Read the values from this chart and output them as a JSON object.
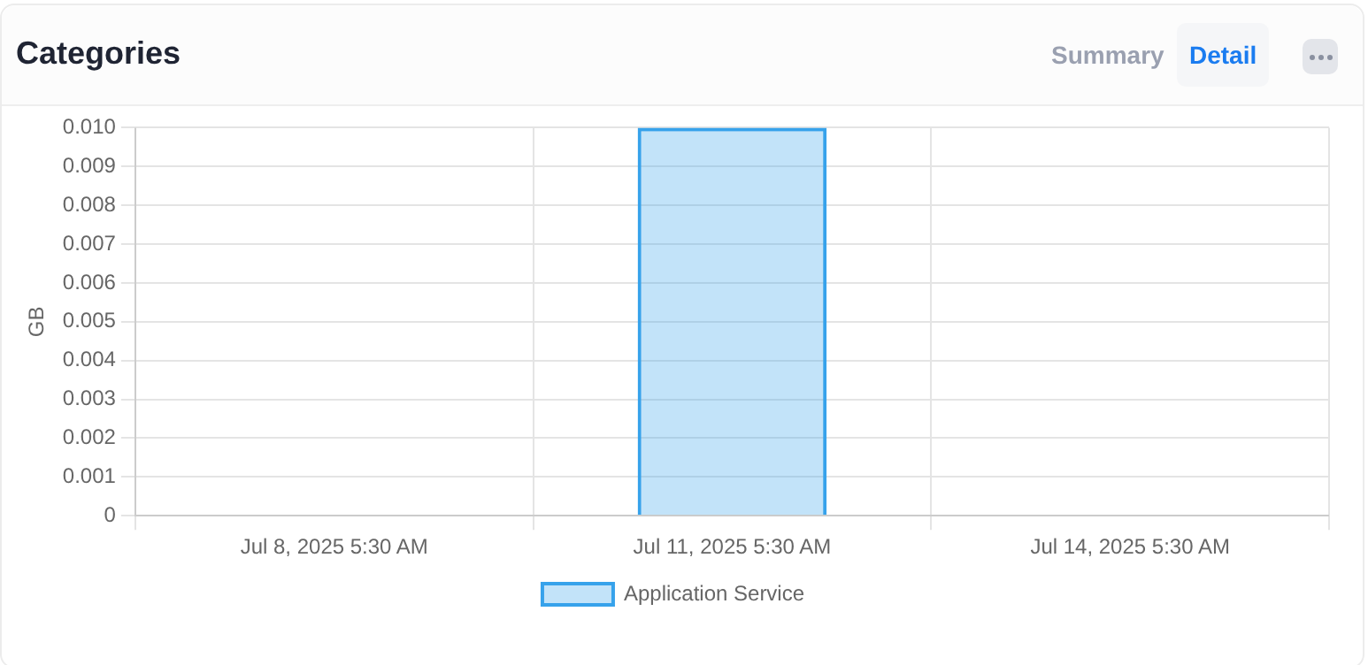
{
  "chart_data": {
    "type": "bar",
    "title": "Categories",
    "annotations": [
      "Summary",
      "Detail"
    ],
    "ylabel": "GB",
    "categories": [
      "Jul 8, 2025 5:30 AM",
      "Jul 11, 2025 5:30 AM",
      "Jul 14, 2025 5:30 AM"
    ],
    "series": [
      {
        "name": "Application Service",
        "color": "#36a2eb",
        "values": [
          0,
          0.01,
          0
        ]
      }
    ],
    "ylim": [
      0,
      0.01
    ],
    "yticks": [
      0,
      0.001,
      0.002,
      0.003,
      0.004,
      0.005,
      0.006,
      0.007,
      0.008,
      0.009,
      {
        "value": 0.01,
        "label": "0.010"
      }
    ],
    "grid": true,
    "legend": "bottom"
  }
}
